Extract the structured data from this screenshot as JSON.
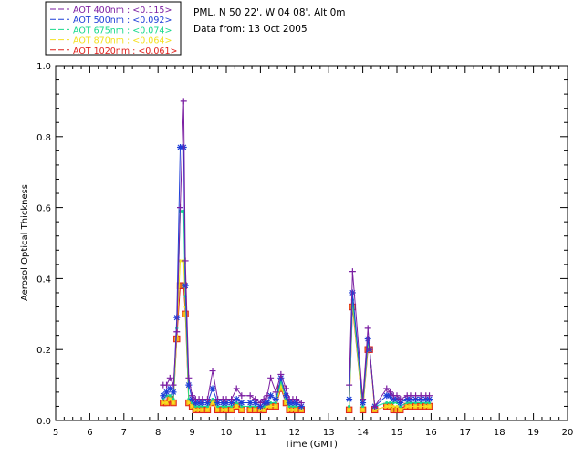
{
  "header": {
    "site": "PML, N 50 22', W 04 08', Alt 0m",
    "date": "Data from: 13 Oct 2005"
  },
  "colors": {
    "s400": "#7b1fa2",
    "s500": "#1f3fd8",
    "s675": "#18d98c",
    "s870": "#f4e020",
    "s1020": "#e0201c"
  },
  "chart_data": {
    "type": "line",
    "xlabel": "Time (GMT)",
    "ylabel": "Aerosol Optical Thickness",
    "xlim": [
      5,
      20
    ],
    "ylim": [
      0,
      1.0
    ],
    "xticks": [
      "5",
      "6",
      "7",
      "8",
      "9",
      "10",
      "11",
      "12",
      "13",
      "14",
      "15",
      "16",
      "17",
      "18",
      "19",
      "20"
    ],
    "yticks": [
      "0.0",
      "0.2",
      "0.4",
      "0.6",
      "0.8",
      "1.0"
    ],
    "legend": [
      {
        "name": "AOT  400nm : ",
        "mean": "<0.115>",
        "colorKey": "s400"
      },
      {
        "name": "AOT  500nm : ",
        "mean": "<0.092>",
        "colorKey": "s500"
      },
      {
        "name": "AOT  675nm : ",
        "mean": "<0.074>",
        "colorKey": "s675"
      },
      {
        "name": "AOT  870nm : ",
        "mean": "<0.064>",
        "colorKey": "s870"
      },
      {
        "name": "AOT 1020nm : ",
        "mean": "<0.061>",
        "colorKey": "s1020"
      }
    ],
    "x": [
      8.15,
      8.25,
      8.35,
      8.45,
      8.55,
      8.65,
      8.75,
      8.8,
      8.9,
      9.0,
      9.1,
      9.2,
      9.3,
      9.45,
      9.6,
      9.75,
      9.9,
      10.0,
      10.15,
      10.3,
      10.45,
      10.7,
      10.85,
      11.0,
      11.1,
      11.2,
      11.3,
      11.45,
      11.6,
      11.75,
      11.85,
      11.95,
      12.05,
      12.2,
      13.6,
      13.7,
      14.0,
      14.15,
      14.2,
      14.35,
      14.7,
      14.8,
      14.9,
      15.0,
      15.1,
      15.3,
      15.4,
      15.55,
      15.7,
      15.85,
      15.95
    ],
    "series": [
      {
        "name": "400nm",
        "colorKey": "s400",
        "marker": "plus",
        "values": [
          0.1,
          0.1,
          0.12,
          0.1,
          0.25,
          0.6,
          0.9,
          0.45,
          0.12,
          0.07,
          0.06,
          0.06,
          0.06,
          0.06,
          0.14,
          0.06,
          0.06,
          0.06,
          0.06,
          0.09,
          0.07,
          0.07,
          0.06,
          0.05,
          0.06,
          0.07,
          0.12,
          0.08,
          0.13,
          0.09,
          0.06,
          0.06,
          0.06,
          0.05,
          0.1,
          0.42,
          0.06,
          0.26,
          0.2,
          0.04,
          0.09,
          0.08,
          0.07,
          0.07,
          0.06,
          0.07,
          0.07,
          0.07,
          0.07,
          0.07,
          0.07
        ]
      },
      {
        "name": "500nm",
        "colorKey": "s500",
        "marker": "star",
        "values": [
          0.07,
          0.08,
          0.09,
          0.08,
          0.29,
          0.77,
          0.77,
          0.38,
          0.1,
          0.06,
          0.05,
          0.05,
          0.05,
          0.05,
          0.09,
          0.05,
          0.05,
          0.05,
          0.05,
          0.06,
          0.05,
          0.05,
          0.05,
          0.04,
          0.05,
          0.05,
          0.07,
          0.06,
          0.12,
          0.07,
          0.05,
          0.05,
          0.05,
          0.04,
          0.06,
          0.36,
          0.05,
          0.23,
          0.2,
          0.04,
          0.07,
          0.07,
          0.06,
          0.06,
          0.05,
          0.06,
          0.06,
          0.06,
          0.06,
          0.06,
          0.06
        ]
      },
      {
        "name": "675nm",
        "colorKey": "s675",
        "marker": "dot",
        "values": [
          0.06,
          0.07,
          0.07,
          0.06,
          0.26,
          0.59,
          0.59,
          0.35,
          0.06,
          0.05,
          0.04,
          0.04,
          0.04,
          0.04,
          0.06,
          0.04,
          0.04,
          0.04,
          0.04,
          0.05,
          0.04,
          0.04,
          0.04,
          0.04,
          0.04,
          0.05,
          0.05,
          0.05,
          0.11,
          0.06,
          0.04,
          0.04,
          0.04,
          0.04,
          0.04,
          0.34,
          0.04,
          0.22,
          0.2,
          0.04,
          0.05,
          0.05,
          0.05,
          0.05,
          0.04,
          0.05,
          0.05,
          0.05,
          0.05,
          0.05,
          0.05
        ]
      },
      {
        "name": "870nm",
        "colorKey": "s870",
        "marker": "dot",
        "values": [
          0.05,
          0.05,
          0.06,
          0.05,
          0.24,
          0.45,
          0.45,
          0.32,
          0.05,
          0.04,
          0.03,
          0.03,
          0.03,
          0.03,
          0.05,
          0.03,
          0.03,
          0.03,
          0.03,
          0.04,
          0.03,
          0.03,
          0.03,
          0.03,
          0.03,
          0.04,
          0.04,
          0.04,
          0.1,
          0.05,
          0.03,
          0.03,
          0.03,
          0.03,
          0.03,
          0.33,
          0.03,
          0.21,
          0.2,
          0.03,
          0.04,
          0.04,
          0.04,
          0.04,
          0.03,
          0.04,
          0.04,
          0.04,
          0.04,
          0.04,
          0.04
        ]
      },
      {
        "name": "1020nm",
        "colorKey": "s1020",
        "marker": "square",
        "values": [
          0.05,
          0.05,
          0.06,
          0.05,
          0.23,
          0.38,
          0.38,
          0.3,
          0.05,
          0.04,
          0.03,
          0.03,
          0.03,
          0.03,
          0.05,
          0.03,
          0.03,
          0.03,
          0.03,
          0.04,
          0.03,
          0.03,
          0.03,
          0.03,
          0.03,
          0.04,
          0.04,
          0.04,
          0.09,
          0.05,
          0.03,
          0.03,
          0.03,
          0.03,
          0.03,
          0.32,
          0.03,
          0.2,
          0.2,
          0.03,
          0.04,
          0.04,
          0.03,
          0.03,
          0.03,
          0.04,
          0.04,
          0.04,
          0.04,
          0.04,
          0.04
        ]
      }
    ]
  }
}
